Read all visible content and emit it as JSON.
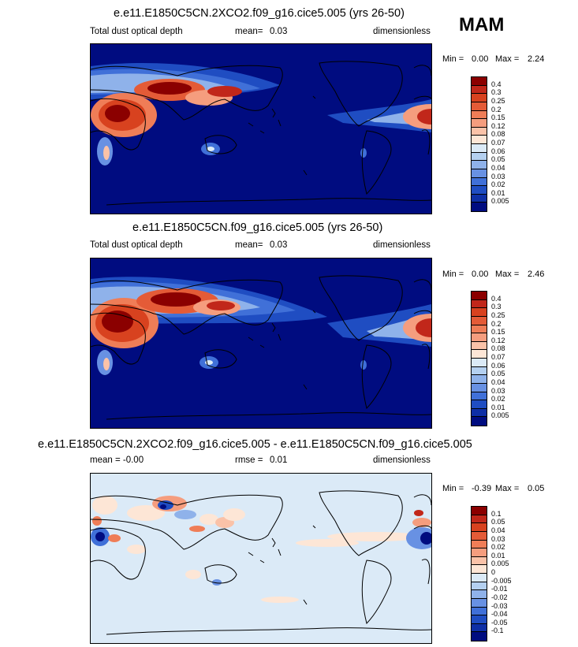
{
  "season": "MAM",
  "panels": [
    {
      "title": "e.e11.E1850C5CN.2XCO2.f09_g16.cice5.005 (yrs 26-50)",
      "left_label": "Total dust optical depth",
      "stat_label": "mean=",
      "stat_value": "0.03",
      "units": "dimensionless",
      "min_label": "Min =",
      "min_value": "0.00",
      "max_label": "Max =",
      "max_value": "2.24",
      "scale": "abs"
    },
    {
      "title": "e.e11.E1850C5CN.f09_g16.cice5.005 (yrs 26-50)",
      "left_label": "Total dust optical depth",
      "stat_label": "mean=",
      "stat_value": "0.03",
      "units": "dimensionless",
      "min_label": "Min =",
      "min_value": "0.00",
      "max_label": "Max =",
      "max_value": "2.46",
      "scale": "abs"
    },
    {
      "title": "e.e11.E1850C5CN.2XCO2.f09_g16.cice5.005 - e.e11.E1850C5CN.f09_g16.cice5.005",
      "left_label": "mean = -0.00",
      "stat_label": "rmse =",
      "stat_value": "0.01",
      "units": "dimensionless",
      "min_label": "Min =",
      "min_value": "-0.39",
      "max_label": "Max =",
      "max_value": "0.05",
      "scale": "diff"
    }
  ],
  "colorbars": {
    "abs": {
      "labels": [
        "0.4",
        "0.3",
        "0.25",
        "0.2",
        "0.15",
        "0.12",
        "0.08",
        "0.07",
        "0.06",
        "0.05",
        "0.04",
        "0.03",
        "0.02",
        "0.01",
        "0.005"
      ],
      "colors": [
        "#8b0000",
        "#c1271a",
        "#d8421f",
        "#e45b37",
        "#ef7d57",
        "#f59d7e",
        "#fac2a8",
        "#fde6d6",
        "#dbeaf7",
        "#b4d0f0",
        "#8fb2ea",
        "#6891e3",
        "#4070d8",
        "#1f4dc2",
        "#0e2fa6",
        "#000c80"
      ]
    },
    "diff": {
      "labels": [
        "0.1",
        "0.05",
        "0.04",
        "0.03",
        "0.02",
        "0.01",
        "0.005",
        "0",
        "-0.005",
        "-0.01",
        "-0.02",
        "-0.03",
        "-0.04",
        "-0.05",
        "-0.1"
      ],
      "colors": [
        "#8b0000",
        "#c1271a",
        "#d8421f",
        "#e45b37",
        "#ef7d57",
        "#f59d7e",
        "#fac2a8",
        "#fde6d6",
        "#dbeaf7",
        "#b4d0f0",
        "#8fb2ea",
        "#6891e3",
        "#4070d8",
        "#1f4dc2",
        "#0e2fa6",
        "#000c80"
      ]
    }
  },
  "chart_data": [
    {
      "type": "heatmap",
      "title": "e.e11.E1850C5CN.2XCO2.f09_g16.cice5.005 (yrs 26-50)",
      "field": "Total dust optical depth",
      "mean": 0.03,
      "min": 0.0,
      "max": 2.24,
      "units": "dimensionless",
      "contour_levels": [
        0.005,
        0.01,
        0.02,
        0.03,
        0.04,
        0.05,
        0.06,
        0.07,
        0.08,
        0.12,
        0.15,
        0.2,
        0.25,
        0.3,
        0.4
      ]
    },
    {
      "type": "heatmap",
      "title": "e.e11.E1850C5CN.f09_g16.cice5.005 (yrs 26-50)",
      "field": "Total dust optical depth",
      "mean": 0.03,
      "min": 0.0,
      "max": 2.46,
      "units": "dimensionless",
      "contour_levels": [
        0.005,
        0.01,
        0.02,
        0.03,
        0.04,
        0.05,
        0.06,
        0.07,
        0.08,
        0.12,
        0.15,
        0.2,
        0.25,
        0.3,
        0.4
      ]
    },
    {
      "type": "heatmap",
      "title": "e.e11.E1850C5CN.2XCO2.f09_g16.cice5.005 - e.e11.E1850C5CN.f09_g16.cice5.005",
      "mean": -0.0,
      "rmse": 0.01,
      "min": -0.39,
      "max": 0.05,
      "units": "dimensionless",
      "contour_levels": [
        -0.1,
        -0.05,
        -0.04,
        -0.03,
        -0.02,
        -0.01,
        -0.005,
        0,
        0.005,
        0.01,
        0.02,
        0.03,
        0.04,
        0.05,
        0.1
      ]
    }
  ]
}
